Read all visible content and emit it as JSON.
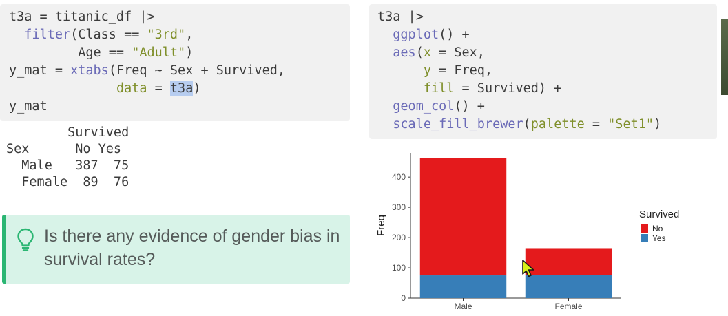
{
  "code_left": {
    "lines": [
      "t3a = titanic_df |>",
      "  filter(Class == \"3rd\",",
      "         Age == \"Adult\")",
      "y_mat = xtabs(Freq ~ Sex + Survived,",
      "              data = t3a)",
      "y_mat"
    ]
  },
  "output": {
    "text": "        Survived\nSex      No Yes\n  Male   387  75\n  Female  89  76"
  },
  "callout": {
    "text": "Is there any evidence of gender bias in survival rates?",
    "icon": "lightbulb-icon",
    "accent": "#2bb673",
    "background": "#d8f3e8"
  },
  "code_right": {
    "lines": [
      "t3a |>",
      "  ggplot() +",
      "  aes(x = Sex,",
      "      y = Freq,",
      "      fill = Survived) +",
      "  geom_col() +",
      "  scale_fill_brewer(palette = \"Set1\")"
    ]
  },
  "chart_data": {
    "type": "bar",
    "stacked": true,
    "categories": [
      "Male",
      "Female"
    ],
    "series": [
      {
        "name": "No",
        "values": [
          387,
          89
        ],
        "color": "#e41a1c"
      },
      {
        "name": "Yes",
        "values": [
          75,
          76
        ],
        "color": "#377eb8"
      }
    ],
    "ylabel": "Freq",
    "xlabel": "",
    "yticks": [
      0,
      100,
      200,
      300,
      400
    ],
    "ylim": [
      0,
      480
    ],
    "legend_title": "Survived",
    "legend_position": "right",
    "grid": false
  }
}
